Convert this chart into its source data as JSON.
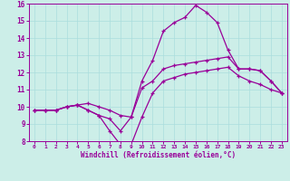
{
  "xlabel": "Windchill (Refroidissement éolien,°C)",
  "background_color": "#cceee8",
  "line_color": "#990099",
  "xlim": [
    -0.5,
    23.5
  ],
  "ylim": [
    8,
    16
  ],
  "xticks": [
    0,
    1,
    2,
    3,
    4,
    5,
    6,
    7,
    8,
    9,
    10,
    11,
    12,
    13,
    14,
    15,
    16,
    17,
    18,
    19,
    20,
    21,
    22,
    23
  ],
  "yticks": [
    8,
    9,
    10,
    11,
    12,
    13,
    14,
    15,
    16
  ],
  "grid_color": "#aadddd",
  "series": [
    {
      "x": [
        0,
        1,
        2,
        3,
        4,
        5,
        6,
        7,
        8,
        9,
        10,
        11,
        12,
        13,
        14,
        15,
        16,
        17,
        18,
        19,
        20,
        21,
        22,
        23
      ],
      "y": [
        9.8,
        9.8,
        9.8,
        10.0,
        10.1,
        10.2,
        10.0,
        9.8,
        9.5,
        9.4,
        11.5,
        12.7,
        14.4,
        14.9,
        15.2,
        15.9,
        15.5,
        14.9,
        13.3,
        12.2,
        12.2,
        12.1,
        11.5,
        10.8
      ]
    },
    {
      "x": [
        0,
        1,
        2,
        3,
        4,
        5,
        6,
        7,
        8,
        9,
        10,
        11,
        12,
        13,
        14,
        15,
        16,
        17,
        18,
        19,
        20,
        21,
        22,
        23
      ],
      "y": [
        9.8,
        9.8,
        9.8,
        10.0,
        10.1,
        9.8,
        9.5,
        9.3,
        8.6,
        9.4,
        11.1,
        11.5,
        12.2,
        12.4,
        12.5,
        12.6,
        12.7,
        12.8,
        12.9,
        12.2,
        12.2,
        12.1,
        11.5,
        10.8
      ]
    },
    {
      "x": [
        0,
        1,
        2,
        3,
        4,
        5,
        6,
        7,
        8,
        9,
        10,
        11,
        12,
        13,
        14,
        15,
        16,
        17,
        18,
        19,
        20,
        21,
        22,
        23
      ],
      "y": [
        9.8,
        9.8,
        9.8,
        10.0,
        10.1,
        9.8,
        9.5,
        8.6,
        7.8,
        7.8,
        9.4,
        10.8,
        11.5,
        11.7,
        11.9,
        12.0,
        12.1,
        12.2,
        12.3,
        11.8,
        11.5,
        11.3,
        11.0,
        10.8
      ]
    }
  ]
}
